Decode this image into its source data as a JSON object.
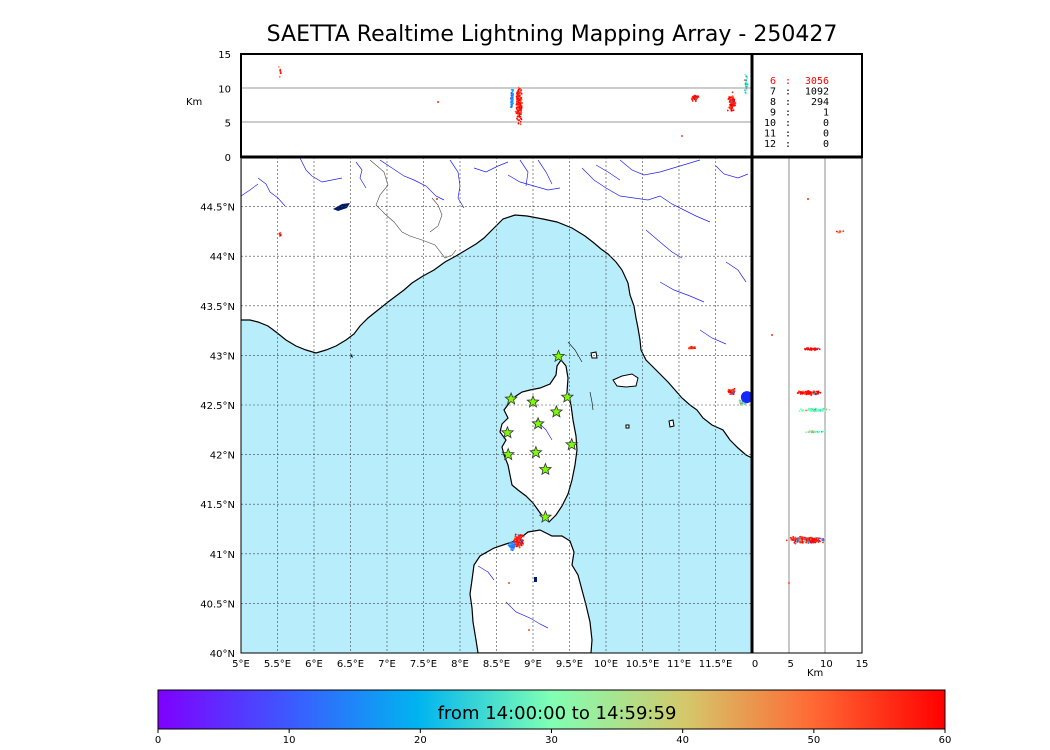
{
  "title": "SAETTA Realtime Lightning Mapping Array - 250427",
  "colors": {
    "sea": "#b8eefb",
    "land": "#ffffff",
    "river": "#2222ee",
    "border": "#444444",
    "grid": "#444444",
    "station_fill": "#7cfc00",
    "highlight_count": "#ff0000",
    "lake": "#001a66"
  },
  "map": {
    "lon_range": [
      5,
      12
    ],
    "lat_range": [
      40,
      45
    ],
    "lon_ticks": [
      "5°E",
      "5.5°E",
      "6°E",
      "6.5°E",
      "7°E",
      "7.5°E",
      "8°E",
      "8.5°E",
      "9°E",
      "9.5°E",
      "10°E",
      "10.5°E",
      "11°E",
      "11.5°E"
    ],
    "lat_ticks": [
      "40°N",
      "40.5°N",
      "41°N",
      "41.5°N",
      "42°N",
      "42.5°N",
      "43°N",
      "43.5°N",
      "44°N",
      "44.5°N"
    ],
    "stations": [
      {
        "lon": 9.35,
        "lat": 42.99
      },
      {
        "lon": 8.7,
        "lat": 42.56
      },
      {
        "lon": 9.0,
        "lat": 42.53
      },
      {
        "lon": 9.47,
        "lat": 42.58
      },
      {
        "lon": 9.32,
        "lat": 42.43
      },
      {
        "lon": 9.07,
        "lat": 42.31
      },
      {
        "lon": 8.65,
        "lat": 42.22
      },
      {
        "lon": 9.53,
        "lat": 42.1
      },
      {
        "lon": 8.66,
        "lat": 42.0
      },
      {
        "lon": 9.04,
        "lat": 42.02
      },
      {
        "lon": 9.17,
        "lat": 41.85
      },
      {
        "lon": 9.17,
        "lat": 41.37
      }
    ],
    "source_marker": {
      "lon": 11.93,
      "lat": 42.58
    }
  },
  "altitude_top": {
    "unit_label": "Km",
    "ticks": [
      "0",
      "5",
      "10",
      "15"
    ],
    "range": [
      0,
      15
    ]
  },
  "altitude_side": {
    "unit_label": "Km",
    "ticks": [
      "0",
      "5",
      "10",
      "15"
    ],
    "range": [
      0,
      15
    ]
  },
  "station_counts": [
    {
      "stations": "6",
      "count": "3056",
      "highlight": true
    },
    {
      "stations": "7",
      "count": "1092",
      "highlight": false
    },
    {
      "stations": "8",
      "count": "294",
      "highlight": false
    },
    {
      "stations": "9",
      "count": "1",
      "highlight": false
    },
    {
      "stations": "10",
      "count": "0",
      "highlight": false
    },
    {
      "stations": "11",
      "count": "0",
      "highlight": false
    },
    {
      "stations": "12",
      "count": "0",
      "highlight": false
    }
  ],
  "colorbar": {
    "label": "from 14:00:00 to 14:59:59",
    "ticks": [
      "0",
      "10",
      "20",
      "30",
      "40",
      "50",
      "60"
    ],
    "range": [
      0,
      60
    ]
  }
}
